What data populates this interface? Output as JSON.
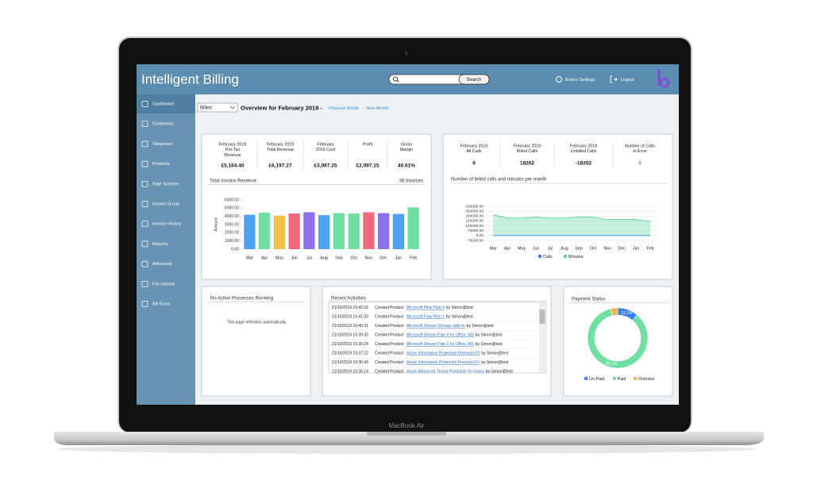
{
  "laptop_label": "MacBook Air",
  "header": {
    "title": "Intelligent Billing",
    "search_button": "Search",
    "settings": "Boris's Settings",
    "logout": "Logout"
  },
  "sidebar": [
    "Dashboard",
    "Customers",
    "Telephone",
    "Products",
    "Rate Scheme",
    "Invoice Group",
    "Invoice History",
    "Reports",
    "Advanced",
    "File Upload",
    "Bill Runs"
  ],
  "toolbar": {
    "filter": "Billed",
    "overview": "Overview for February 2019 -",
    "previous": "Previous Month",
    "separator": "-",
    "next": "Next Month"
  },
  "revenue_panel": {
    "stats": [
      {
        "label": [
          "February 2019",
          "Pre-Tax",
          "Revenue"
        ],
        "value": "£5,164.40"
      },
      {
        "label": [
          "February 2019",
          "Total Revenue"
        ],
        "value": "£6,197.27"
      },
      {
        "label": [
          "February",
          "2019 Cost"
        ],
        "value": "£3,067.25"
      },
      {
        "label": [
          "Profit"
        ],
        "value": "£2,097.15"
      },
      {
        "label": [
          "Gross",
          "Margin"
        ],
        "value": "40.61%"
      }
    ],
    "chart_data": {
      "type": "bar",
      "title": "Total Invoice Revenue",
      "note": "36 Invoices",
      "y_label": "Amount",
      "categories": [
        "Mar",
        "Apr",
        "May",
        "Jun",
        "Jul",
        "Aug",
        "Sep",
        "Oct",
        "Nov",
        "Dec",
        "Jan",
        "Feb"
      ],
      "values": [
        4200,
        4450,
        4100,
        4350,
        4500,
        4150,
        4400,
        4350,
        4500,
        4400,
        4300,
        5100
      ],
      "colors": [
        "#4da3f2",
        "#6fe0a2",
        "#f7c04a",
        "#f2687c",
        "#8c70ee",
        "#4da3f2",
        "#6fe0a2",
        "#6fe0a2",
        "#f2687c",
        "#8c70ee",
        "#4da3f2",
        "#6fe0a2"
      ],
      "ylim": [
        0,
        6000
      ],
      "yticks": [
        {
          "value": 0,
          "label": "0.00"
        },
        {
          "value": 1000,
          "label": "1000.00"
        },
        {
          "value": 2000,
          "label": "2000.00"
        },
        {
          "value": 3000,
          "label": "3000.00"
        },
        {
          "value": 4000,
          "label": "4000.00"
        },
        {
          "value": 5000,
          "label": "5000.00"
        },
        {
          "value": 6000,
          "label": "6000.00"
        }
      ]
    }
  },
  "calls_panel": {
    "stats": [
      {
        "label": [
          "February 2019",
          "All Calls"
        ],
        "value": "0"
      },
      {
        "label": [
          "February 2019",
          "Billed Calls"
        ],
        "value": "18202"
      },
      {
        "label": [
          "February 2019",
          "Unbilled Calls"
        ],
        "value": "-18202"
      },
      {
        "label": [
          "Number of Calls",
          "in Error"
        ],
        "value": "0",
        "link": true
      }
    ],
    "chart_data": {
      "type": "line",
      "title": "Number of billed calls and minutes per month",
      "categories": [
        "Mar",
        "Apr",
        "May",
        "Jun",
        "Jul",
        "Aug",
        "Sep",
        "Oct",
        "Nov",
        "Dec",
        "Jan",
        "Feb"
      ],
      "series": [
        {
          "name": "Calls",
          "color": "#3b82f6",
          "values": [
            0,
            0,
            0,
            0,
            0,
            0,
            0,
            0,
            0,
            0,
            0,
            0
          ]
        },
        {
          "name": "Minutes",
          "color": "#5fd6a0",
          "fill": true,
          "values": [
            300000,
            250000,
            250000,
            265000,
            250000,
            250000,
            265000,
            265000,
            230000,
            230000,
            230000,
            200000
          ]
        }
      ],
      "ylim": [
        -70000,
        420000
      ],
      "yticks": [
        {
          "value": -70000,
          "label": "-70000.00"
        },
        {
          "value": 0,
          "label": "0.00"
        },
        {
          "value": 70000,
          "label": "70000.00"
        },
        {
          "value": 140000,
          "label": "140000.00"
        },
        {
          "value": 210000,
          "label": "210000.00"
        },
        {
          "value": 280000,
          "label": "280000.00"
        },
        {
          "value": 350000,
          "label": "350000.00"
        },
        {
          "value": 420000,
          "label": "420000.00"
        }
      ],
      "grid": true
    }
  },
  "processes": {
    "title": "No Active Processes Running",
    "note": "This page refreshes automatically"
  },
  "activities": {
    "title": "Recent Activities",
    "rows": [
      {
        "time": "21/10/2019 15:42:16",
        "action": "Created Product",
        "product": "Microsoft Flow Plan 4",
        "user": "by Simon@test"
      },
      {
        "time": "21/10/2019 15:41:33",
        "action": "Created Product",
        "product": "Microsoft Flow Plan 1",
        "user": "by Simon@test"
      },
      {
        "time": "21/10/2019 15:40:21",
        "action": "Created Product",
        "product": "Microsoft Stream Storage add-on",
        "user": "by Simon@test"
      },
      {
        "time": "21/10/2019 15:39:33",
        "action": "Created Product",
        "product": "Microsoft Stream Plan 3 for Office 365",
        "user": "by Simon@test"
      },
      {
        "time": "21/10/2019 15:39:24",
        "action": "Created Product",
        "product": "Microsoft Stream Plan 2 for Office 365",
        "user": "by Simon@test"
      },
      {
        "time": "21/10/2019 15:37:22",
        "action": "Created Product",
        "product": "Azure Information Protection Premium P2",
        "user": "by Simon@test"
      },
      {
        "time": "21/10/2019 15:36:43",
        "action": "Created Product",
        "product": "Azure Information Protection Premium P1",
        "user": "by Simon@test"
      },
      {
        "time": "21/10/2019 15:35:14",
        "action": "Created Product",
        "product": "Azure Advanced Threat Protection for Users",
        "user": "by Simon@test"
      }
    ]
  },
  "payment_panel": {
    "chart_data": {
      "type": "pie",
      "donut": true,
      "title": "Payment Status",
      "categories": [
        "Un-Paid",
        "Paid",
        "Overdue"
      ],
      "values": [
        11.1,
        85.1,
        3.8
      ],
      "value_labels": [
        "11.1%",
        "85.1%",
        null
      ],
      "colors": [
        "#3b82f6",
        "#6fe0a2",
        "#f2b84a"
      ]
    }
  }
}
